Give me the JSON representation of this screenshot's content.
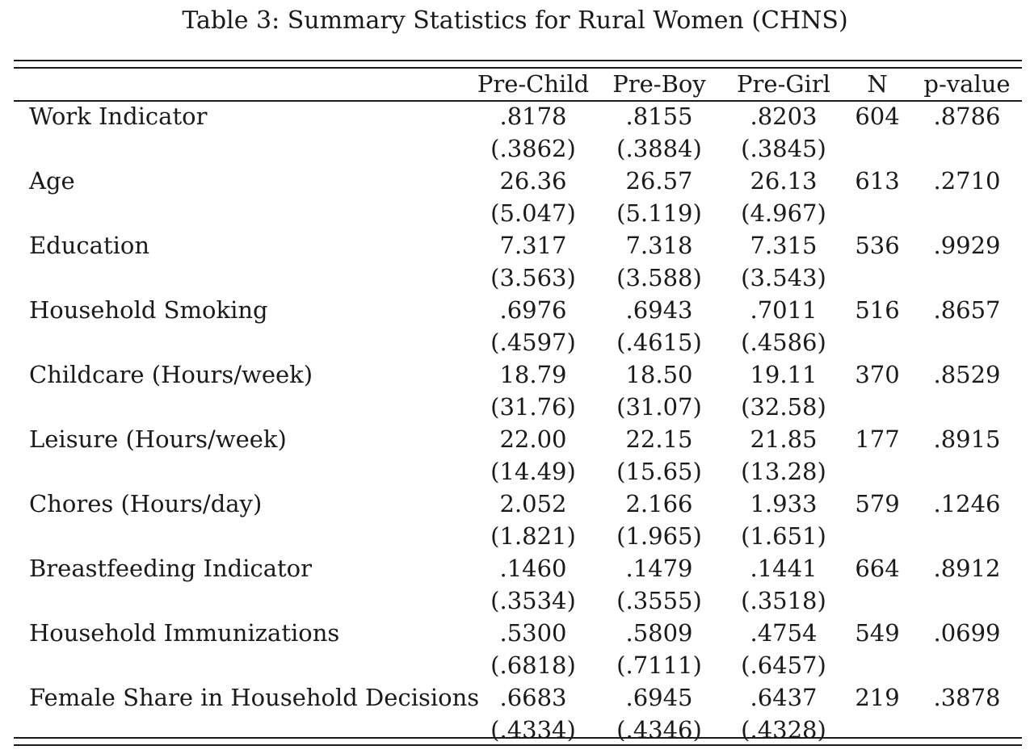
{
  "caption": "Table 3: Summary Statistics for Rural Women (CHNS)",
  "columns": [
    "Pre-Child",
    "Pre-Boy",
    "Pre-Girl",
    "N",
    "p-value"
  ],
  "rows": [
    {
      "label": "Work Indicator",
      "means": [
        ".8178",
        ".8155",
        ".8203"
      ],
      "sds": [
        "(.3862)",
        "(.3884)",
        "(.3845)"
      ],
      "n": "604",
      "p": ".8786"
    },
    {
      "label": "Age",
      "means": [
        "26.36",
        "26.57",
        "26.13"
      ],
      "sds": [
        "(5.047)",
        "(5.119)",
        "(4.967)"
      ],
      "n": "613",
      "p": ".2710"
    },
    {
      "label": "Education",
      "means": [
        "7.317",
        "7.318",
        "7.315"
      ],
      "sds": [
        "(3.563)",
        "(3.588)",
        "(3.543)"
      ],
      "n": "536",
      "p": ".9929"
    },
    {
      "label": "Household Smoking",
      "means": [
        ".6976",
        ".6943",
        ".7011"
      ],
      "sds": [
        "(.4597)",
        "(.4615)",
        "(.4586)"
      ],
      "n": "516",
      "p": ".8657"
    },
    {
      "label": "Childcare (Hours/week)",
      "means": [
        "18.79",
        "18.50",
        "19.11"
      ],
      "sds": [
        "(31.76)",
        "(31.07)",
        "(32.58)"
      ],
      "n": "370",
      "p": ".8529"
    },
    {
      "label": "Leisure (Hours/week)",
      "means": [
        "22.00",
        "22.15",
        "21.85"
      ],
      "sds": [
        "(14.49)",
        "(15.65)",
        "(13.28)"
      ],
      "n": "177",
      "p": ".8915"
    },
    {
      "label": "Chores (Hours/day)",
      "means": [
        "2.052",
        "2.166",
        "1.933"
      ],
      "sds": [
        "(1.821)",
        "(1.965)",
        "(1.651)"
      ],
      "n": "579",
      "p": ".1246"
    },
    {
      "label": "Breastfeeding Indicator",
      "means": [
        ".1460",
        ".1479",
        ".1441"
      ],
      "sds": [
        "(.3534)",
        "(.3555)",
        "(.3518)"
      ],
      "n": "664",
      "p": ".8912"
    },
    {
      "label": "Household Immunizations",
      "means": [
        ".5300",
        ".5809",
        ".4754"
      ],
      "sds": [
        "(.6818)",
        "(.7111)",
        "(.6457)"
      ],
      "n": "549",
      "p": ".0699"
    },
    {
      "label": "Female Share in Household Decisions",
      "means": [
        ".6683",
        ".6945",
        ".6437"
      ],
      "sds": [
        "(.4334)",
        "(.4346)",
        "(.4328)"
      ],
      "n": "219",
      "p": ".3878"
    }
  ]
}
